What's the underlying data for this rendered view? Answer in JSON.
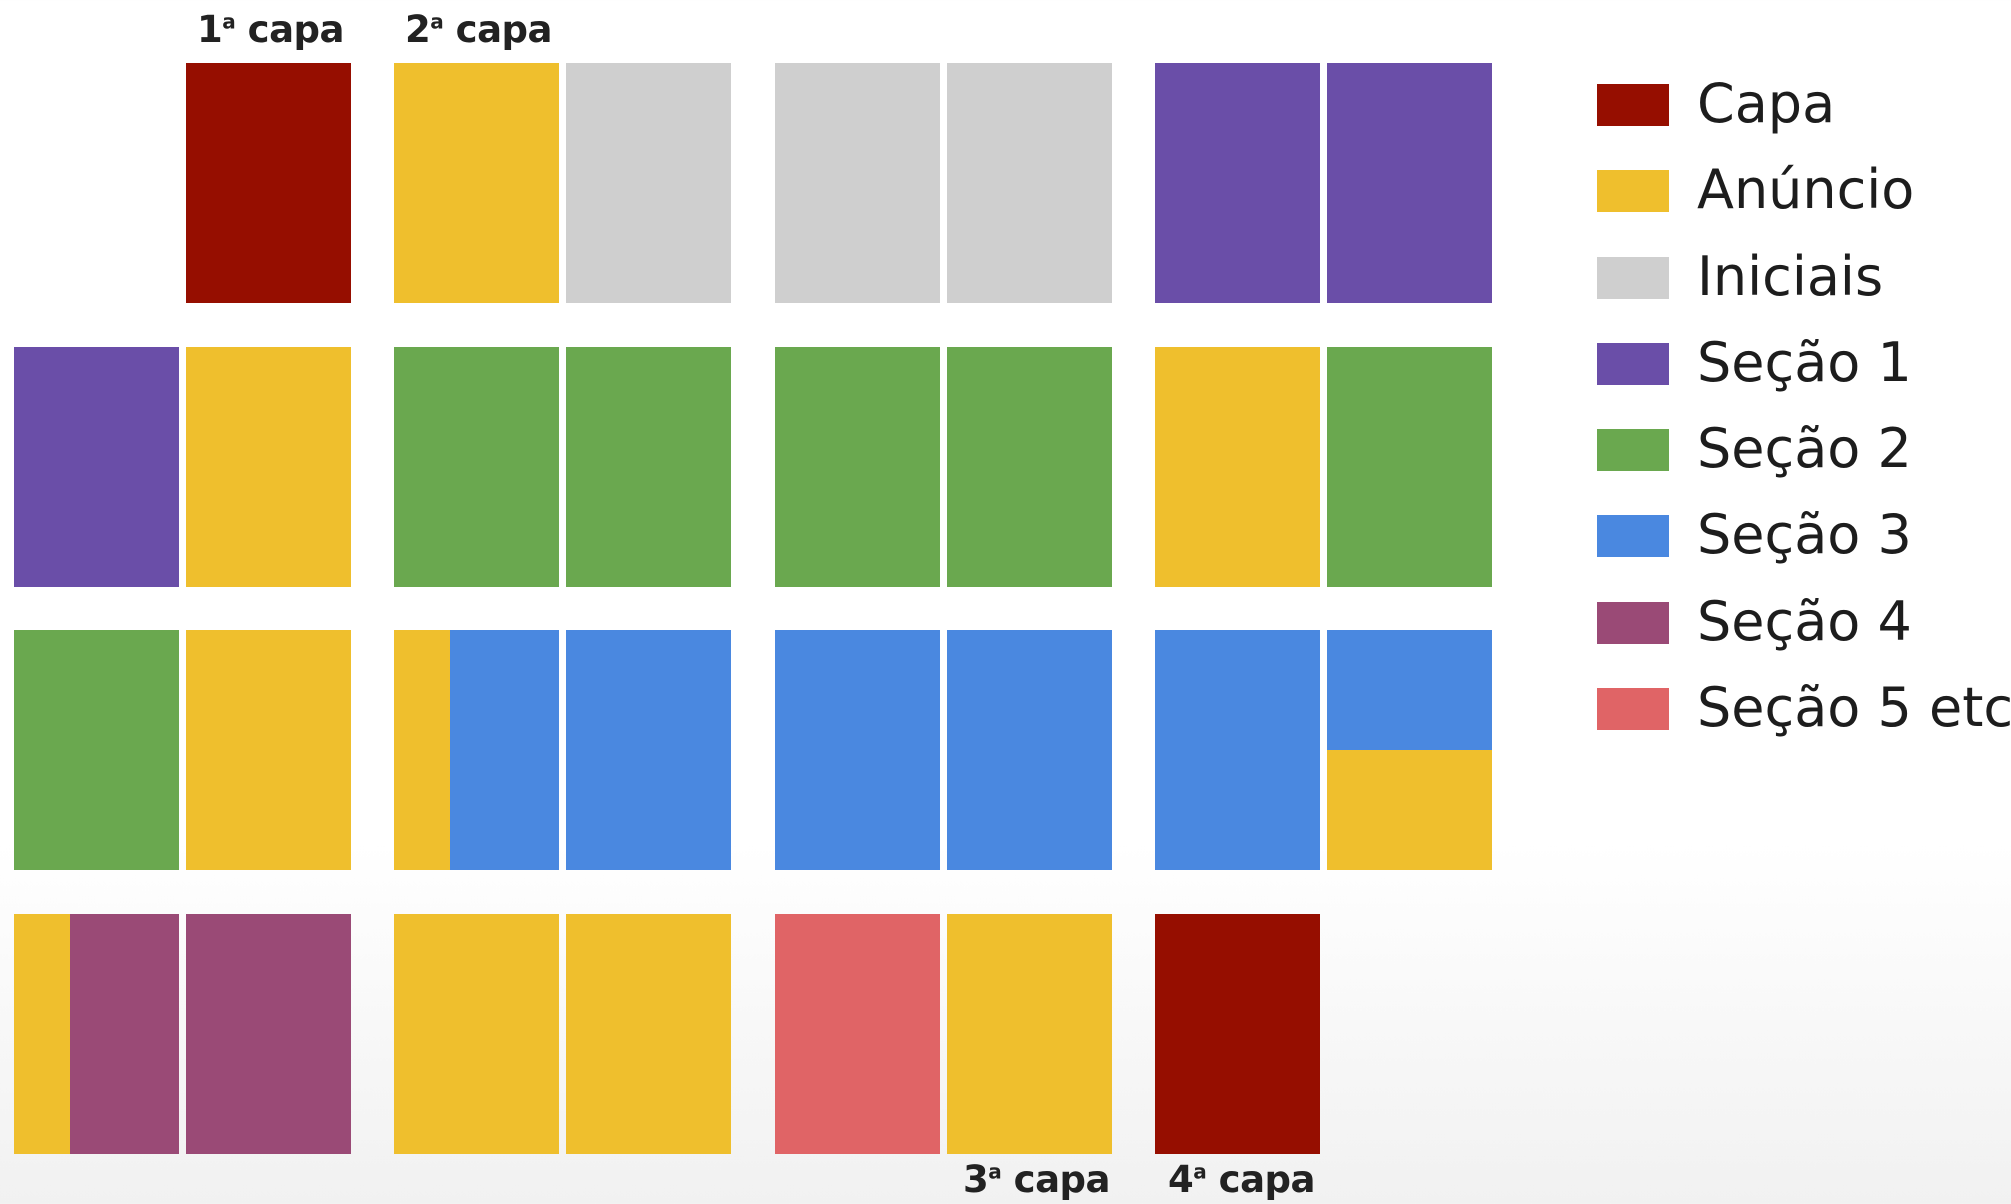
{
  "colors": {
    "capa": "#960e00",
    "anuncio": "#efbf2d",
    "iniciais": "#cfcfcf",
    "secao1": "#6a4ea8",
    "secao2": "#6aa84f",
    "secao3": "#4a88e0",
    "secao4": "#9a4a76",
    "secao5": "#e06466"
  },
  "legend": [
    {
      "key": "capa",
      "label": "Capa"
    },
    {
      "key": "anuncio",
      "label": "Anúncio"
    },
    {
      "key": "iniciais",
      "label": "Iniciais"
    },
    {
      "key": "secao1",
      "label": "Seção 1"
    },
    {
      "key": "secao2",
      "label": "Seção 2"
    },
    {
      "key": "secao3",
      "label": "Seção 3"
    },
    {
      "key": "secao4",
      "label": "Seção 4"
    },
    {
      "key": "secao5",
      "label": "Seção 5 etc."
    }
  ],
  "cover_labels": {
    "first": {
      "num": "1",
      "ord": "a",
      "text": " capa"
    },
    "second": {
      "num": "2",
      "ord": "a",
      "text": " capa"
    },
    "third": {
      "num": "3",
      "ord": "a",
      "text": " capa"
    },
    "fourth": {
      "num": "4",
      "ord": "a",
      "text": " capa"
    }
  },
  "flatplan": [
    [
      [
        null,
        {
          "fill": "capa"
        }
      ],
      [
        {
          "fill": "anuncio"
        },
        {
          "fill": "iniciais"
        }
      ],
      [
        {
          "fill": "iniciais"
        },
        {
          "fill": "iniciais"
        }
      ],
      [
        {
          "fill": "secao1"
        },
        {
          "fill": "secao1"
        }
      ]
    ],
    [
      [
        {
          "fill": "secao1"
        },
        {
          "fill": "anuncio"
        }
      ],
      [
        {
          "fill": "secao2"
        },
        {
          "fill": "secao2"
        }
      ],
      [
        {
          "fill": "secao2"
        },
        {
          "fill": "secao2"
        }
      ],
      [
        {
          "fill": "anuncio"
        },
        {
          "fill": "secao2"
        }
      ]
    ],
    [
      [
        {
          "fill": "secao2"
        },
        {
          "fill": "anuncio"
        }
      ],
      [
        {
          "strip": [
            [
              "anuncio",
              0.34
            ],
            [
              "secao3",
              0.66
            ]
          ]
        },
        {
          "fill": "secao3"
        }
      ],
      [
        {
          "fill": "secao3"
        },
        {
          "fill": "secao3"
        }
      ],
      [
        {
          "fill": "secao3"
        },
        {
          "split": [
            [
              "secao3",
              0.5
            ],
            [
              "anuncio",
              0.5
            ]
          ]
        }
      ]
    ],
    [
      [
        {
          "strip": [
            [
              "anuncio",
              0.34
            ],
            [
              "secao4",
              0.66
            ]
          ]
        },
        {
          "fill": "secao4"
        }
      ],
      [
        {
          "fill": "anuncio"
        },
        {
          "fill": "anuncio"
        }
      ],
      [
        {
          "fill": "secao5"
        },
        {
          "fill": "anuncio"
        }
      ],
      [
        {
          "fill": "capa"
        },
        null
      ]
    ]
  ]
}
